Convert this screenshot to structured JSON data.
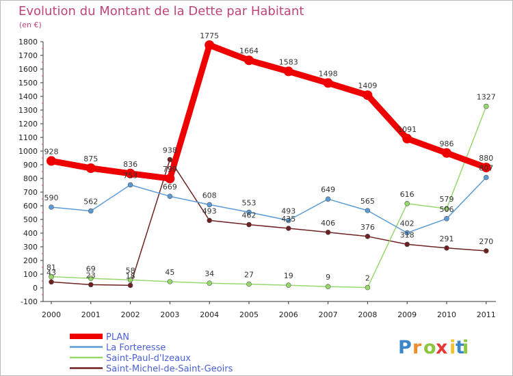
{
  "chart_data": {
    "type": "line",
    "title": "Evolution du Montant de la Dette par Habitant",
    "subtitle": "(en €)",
    "xlabel": "",
    "ylabel": "",
    "x": [
      "2000",
      "2001",
      "2002",
      "2003",
      "2004",
      "2005",
      "2006",
      "2007",
      "2008",
      "2009",
      "2010",
      "2011"
    ],
    "ylim": [
      -100,
      1800
    ],
    "yticks": [
      -100,
      0,
      100,
      200,
      300,
      400,
      500,
      600,
      700,
      800,
      900,
      1000,
      1100,
      1200,
      1300,
      1400,
      1500,
      1600,
      1700,
      1800
    ],
    "grid": false,
    "legend_position": "bottom-left",
    "series": [
      {
        "name": "PLAN",
        "color": "#ee0000",
        "values": [
          928,
          875,
          836,
          799,
          1775,
          1664,
          1583,
          1498,
          1409,
          1091,
          986,
          880
        ]
      },
      {
        "name": "La Forteresse",
        "color": "#5b9bd5",
        "values": [
          590,
          562,
          753,
          669,
          608,
          553,
          493,
          649,
          565,
          402,
          506,
          807
        ]
      },
      {
        "name": "Saint-Paul-d'Izeaux",
        "color": "#96d86b",
        "values": [
          81,
          69,
          58,
          45,
          34,
          27,
          19,
          9,
          2,
          616,
          579,
          1327
        ]
      },
      {
        "name": "Saint-Michel-de-Saint-Geoirs",
        "color": "#6e2020",
        "values": [
          43,
          23,
          18,
          938,
          493,
          462,
          435,
          406,
          376,
          318,
          291,
          270
        ]
      }
    ],
    "data_labels": {
      "PLAN": [
        "928",
        "875",
        "836",
        "799",
        "1775",
        "1664",
        "1583",
        "1498",
        "1409",
        "1091",
        "986",
        "880"
      ],
      "La Forteresse": [
        "590",
        "562",
        "753",
        "669",
        "608",
        "553",
        "493",
        "649",
        "565",
        "402",
        "506",
        "807"
      ],
      "Saint-Paul-d'Izeaux": [
        "81",
        "69",
        "58",
        "45",
        "34",
        "27",
        "19",
        "9",
        "2",
        "616",
        "579",
        "1327"
      ],
      "Saint-Michel-de-Saint-Geoirs": [
        "43",
        "23",
        "18",
        "938",
        "493",
        "462",
        "435",
        "406",
        "376",
        "318",
        "291",
        "270"
      ]
    }
  },
  "legend": {
    "items": [
      "PLAN",
      "La Forteresse",
      "Saint-Paul-d'Izeaux",
      "Saint-Michel-de-Saint-Geoirs"
    ]
  },
  "logo": {
    "letters": [
      "P",
      "r",
      "o",
      "x",
      "i",
      "t",
      "i"
    ],
    "colors": [
      "#3a86c8",
      "#f28c28",
      "#8cc63f",
      "#e53935",
      "#f2c12e",
      "#3a86c8",
      "#8cc63f"
    ]
  }
}
